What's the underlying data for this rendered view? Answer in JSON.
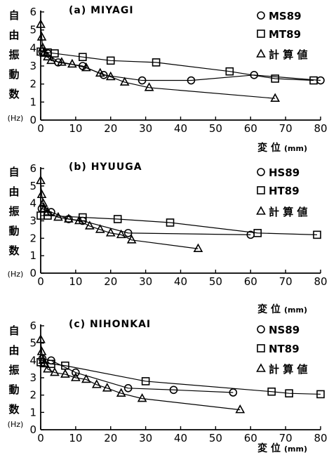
{
  "figure": {
    "ylabel_chars": [
      "自",
      "由",
      "振",
      "動",
      "数"
    ],
    "y_unit": "(Hz)",
    "xlabel": "変 位",
    "x_unit": "(mm)"
  },
  "chart_data": [
    {
      "type": "line",
      "title": "(a) MIYAGI",
      "ylabel": "自由振動数 (Hz)",
      "xlabel": "変位 (mm)",
      "xlim": [
        0,
        80
      ],
      "ylim": [
        0,
        6
      ],
      "xticks": [
        0,
        10,
        20,
        30,
        40,
        50,
        60,
        70,
        80
      ],
      "yticks": [
        0,
        1,
        2,
        3,
        4,
        5,
        6
      ],
      "legend": "top-right",
      "series": [
        {
          "name": "MS89",
          "marker": "circle",
          "x": [
            0.5,
            2,
            5,
            12,
            18,
            29,
            43,
            61,
            80
          ],
          "y": [
            3.8,
            3.7,
            3.2,
            3.0,
            2.5,
            2.2,
            2.2,
            2.5,
            2.2
          ]
        },
        {
          "name": "MT89",
          "marker": "square",
          "x": [
            0,
            2,
            4,
            12,
            20,
            33,
            54,
            67,
            78
          ],
          "y": [
            3.8,
            3.75,
            3.7,
            3.5,
            3.3,
            3.2,
            2.7,
            2.3,
            2.2
          ]
        },
        {
          "name": "計 算 値",
          "marker": "triangle",
          "x": [
            0,
            0.3,
            0.6,
            1,
            2,
            3,
            6,
            9,
            13,
            17,
            20,
            24,
            31,
            67
          ],
          "y": [
            5.3,
            4.6,
            4.0,
            3.7,
            3.5,
            3.3,
            3.2,
            3.1,
            2.9,
            2.6,
            2.4,
            2.1,
            1.8,
            1.2
          ]
        }
      ]
    },
    {
      "type": "line",
      "title": "(b) HYUUGA",
      "ylabel": "自由振動数 (Hz)",
      "xlabel": "変位 (mm)",
      "xlim": [
        0,
        80
      ],
      "ylim": [
        0,
        6
      ],
      "xticks": [
        0,
        10,
        20,
        30,
        40,
        50,
        60,
        70,
        80
      ],
      "yticks": [
        0,
        1,
        2,
        3,
        4,
        5,
        6
      ],
      "legend": "top-right",
      "series": [
        {
          "name": "HS89",
          "marker": "circle",
          "x": [
            0.3,
            3,
            8,
            12,
            25,
            60
          ],
          "y": [
            3.7,
            3.5,
            3.1,
            3.0,
            2.3,
            2.2
          ]
        },
        {
          "name": "HT89",
          "marker": "square",
          "x": [
            0,
            2,
            12,
            22,
            37,
            62,
            79
          ],
          "y": [
            3.3,
            3.3,
            3.2,
            3.1,
            2.9,
            2.3,
            2.2
          ]
        },
        {
          "name": "計 算 値",
          "marker": "triangle",
          "x": [
            0,
            0.3,
            0.7,
            1,
            2,
            5,
            8,
            11,
            14,
            17,
            20,
            23,
            26,
            45
          ],
          "y": [
            5.3,
            4.5,
            4.0,
            3.7,
            3.5,
            3.2,
            3.1,
            3.0,
            2.7,
            2.5,
            2.3,
            2.2,
            1.9,
            1.4
          ]
        }
      ]
    },
    {
      "type": "line",
      "title": "(c) NIHONKAI",
      "ylabel": "自由振動数 (Hz)",
      "xlabel": "変位 (mm)",
      "xlim": [
        0,
        80
      ],
      "ylim": [
        0,
        6
      ],
      "xticks": [
        0,
        10,
        20,
        30,
        40,
        50,
        60,
        70,
        80
      ],
      "yticks": [
        0,
        1,
        2,
        3,
        4,
        5,
        6
      ],
      "legend": "top-right",
      "series": [
        {
          "name": "NS89",
          "marker": "circle",
          "x": [
            0.5,
            3,
            10,
            25,
            38,
            55
          ],
          "y": [
            4.1,
            4.0,
            3.3,
            2.4,
            2.3,
            2.15
          ]
        },
        {
          "name": "NT89",
          "marker": "square",
          "x": [
            0,
            3,
            7,
            30,
            66,
            71,
            80
          ],
          "y": [
            3.9,
            3.8,
            3.7,
            2.8,
            2.2,
            2.1,
            2.05
          ]
        },
        {
          "name": "計 算 値",
          "marker": "triangle",
          "x": [
            0,
            0.3,
            0.7,
            1,
            2,
            4,
            7,
            10,
            13,
            16,
            19,
            23,
            29,
            57
          ],
          "y": [
            5.2,
            4.5,
            4.0,
            3.8,
            3.5,
            3.3,
            3.2,
            3.0,
            2.9,
            2.6,
            2.4,
            2.1,
            1.8,
            1.15
          ]
        }
      ]
    }
  ]
}
